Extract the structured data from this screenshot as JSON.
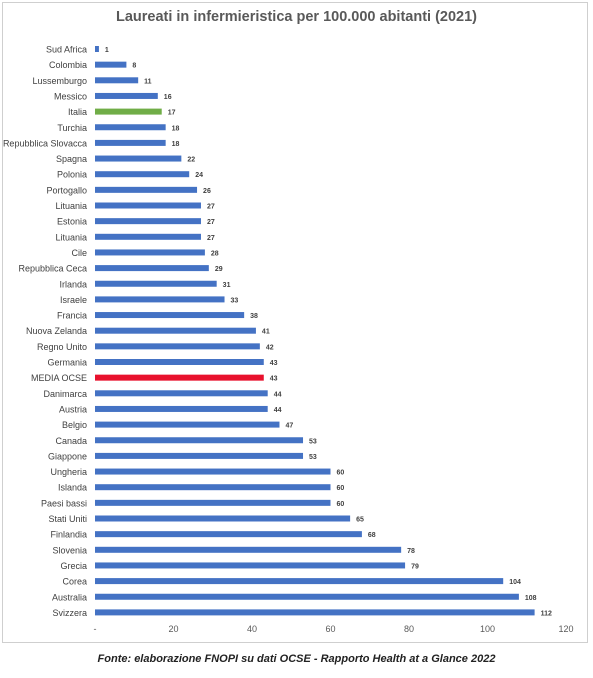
{
  "chart_data": {
    "type": "bar",
    "orientation": "horizontal",
    "title": "Laureati in infermieristica per 100.000 abitanti (2021)",
    "categories": [
      "Sud Africa",
      "Colombia",
      "Lussemburgo",
      "Messico",
      "Italia",
      "Turchia",
      "Repubblica Slovacca",
      "Spagna",
      "Polonia",
      "Portogallo",
      "Lituania",
      "Estonia",
      "Lituania",
      "Cile",
      "Repubblica Ceca",
      "Irlanda",
      "Israele",
      "Francia",
      "Nuova Zelanda",
      "Regno Unito",
      "Germania",
      "MEDIA OCSE",
      "Danimarca",
      "Austria",
      "Belgio",
      "Canada",
      "Giappone",
      "Ungheria",
      "Islanda",
      "Paesi bassi",
      "Stati Uniti",
      "Finlandia",
      "Slovenia",
      "Grecia",
      "Corea",
      "Australia",
      "Svizzera"
    ],
    "values": [
      1,
      8,
      11,
      16,
      17,
      18,
      18,
      22,
      24,
      26,
      27,
      27,
      27,
      28,
      29,
      31,
      33,
      38,
      41,
      42,
      43,
      43,
      44,
      44,
      47,
      53,
      53,
      60,
      60,
      60,
      65,
      68,
      78,
      79,
      104,
      108,
      112
    ],
    "xlim": [
      0,
      120
    ],
    "x_ticks": [
      "-",
      "20",
      "40",
      "60",
      "80",
      "100",
      "120"
    ],
    "grid": false,
    "colors": {
      "default": "#4472c4",
      "highlight_italia": "#70ad47",
      "highlight_media": "#e8112d"
    },
    "highlights": {
      "Italia": "#70ad47",
      "MEDIA OCSE": "#e8112d"
    }
  },
  "source": "Fonte: elaborazione FNOPI su dati OCSE - Rapporto Health at a Glance 2022"
}
